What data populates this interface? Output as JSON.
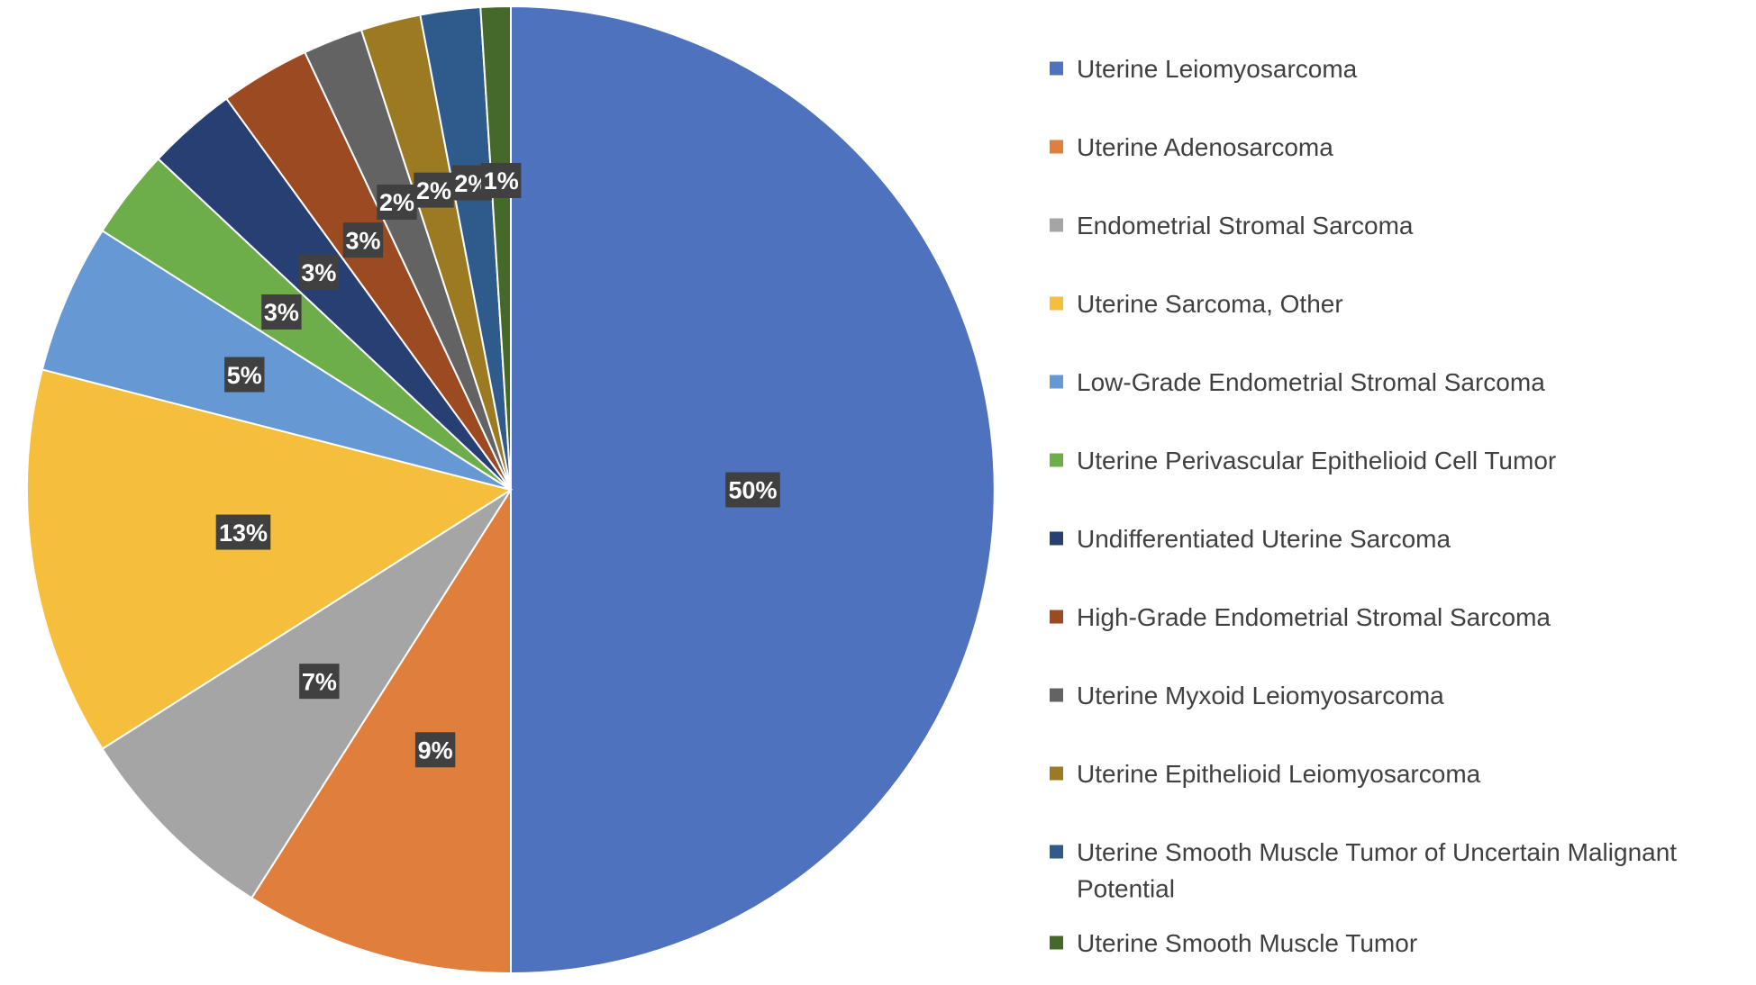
{
  "chart_data": {
    "type": "pie",
    "title": "",
    "legend_position": "right",
    "slices": [
      {
        "label": "Uterine Leiomyosarcoma",
        "value": 50,
        "display": "50%",
        "color": "#4E72BE"
      },
      {
        "label": "Uterine Adenosarcoma",
        "value": 9,
        "display": "9%",
        "color": "#E07E3C"
      },
      {
        "label": "Endometrial Stromal Sarcoma",
        "value": 7,
        "display": "7%",
        "color": "#A5A5A5"
      },
      {
        "label": "Uterine Sarcoma, Other",
        "value": 13,
        "display": "13%",
        "color": "#F5BE3C"
      },
      {
        "label": "Low-Grade Endometrial Stromal Sarcoma",
        "value": 5,
        "display": "5%",
        "color": "#6699D3"
      },
      {
        "label": "Uterine Perivascular Epithelioid Cell Tumor",
        "value": 3,
        "display": "3%",
        "color": "#6DAE4B"
      },
      {
        "label": "Undifferentiated Uterine Sarcoma",
        "value": 3,
        "display": "3%",
        "color": "#273F73"
      },
      {
        "label": "High-Grade Endometrial Stromal Sarcoma",
        "value": 3,
        "display": "3%",
        "color": "#9C4A21"
      },
      {
        "label": "Uterine Myxoid Leiomyosarcoma",
        "value": 2,
        "display": "2%",
        "color": "#636363"
      },
      {
        "label": "Uterine Epithelioid Leiomyosarcoma",
        "value": 2,
        "display": "2%",
        "color": "#9C7A21"
      },
      {
        "label": "Uterine Smooth Muscle Tumor of Uncertain Malignant Potential",
        "value": 2,
        "display": "2%",
        "color": "#2F5A8C"
      },
      {
        "label": "Uterine Smooth Muscle Tumor",
        "value": 1,
        "display": "1%",
        "color": "#44692A"
      }
    ]
  }
}
